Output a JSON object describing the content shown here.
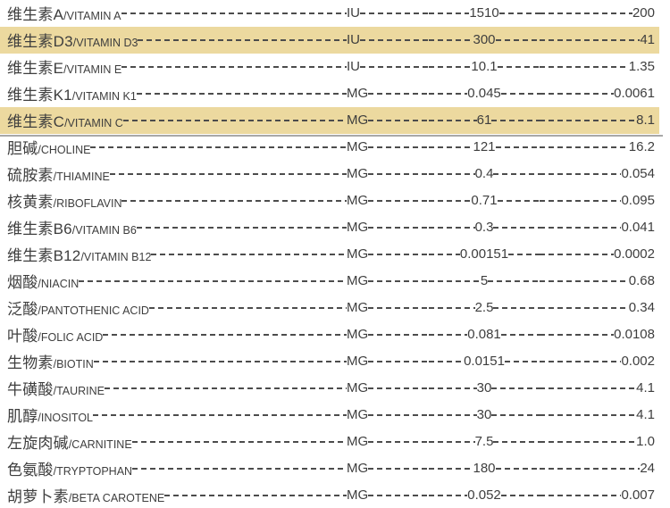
{
  "colors": {
    "highlight": "#ecd99f",
    "text": "#3e3e3e",
    "dash": "#4c4c4c",
    "divider": "#a8a8a8"
  },
  "table": {
    "rows": [
      {
        "cn": "维生素A",
        "en": "/VITAMIN A",
        "unit": "IU",
        "value1": "1510",
        "value2": "200",
        "highlight": false,
        "divider_below": false
      },
      {
        "cn": "维生素D3",
        "en": "/VITAMIN D3",
        "unit": "IU",
        "value1": "300",
        "value2": "41",
        "highlight": true,
        "divider_below": false
      },
      {
        "cn": "维生素E",
        "en": "/VITAMIN E",
        "unit": "IU",
        "value1": "10.1",
        "value2": "1.35",
        "highlight": false,
        "divider_below": false
      },
      {
        "cn": "维生素K1",
        "en": "/VITAMIN K1",
        "unit": "MG",
        "value1": "0.045",
        "value2": "0.0061",
        "highlight": false,
        "divider_below": false
      },
      {
        "cn": "维生素C",
        "en": "/VITAMIN C",
        "unit": "MG",
        "value1": "61",
        "value2": "8.1",
        "highlight": true,
        "divider_below": true
      },
      {
        "cn": "胆碱",
        "en": "/CHOLINE",
        "unit": "MG",
        "value1": "121",
        "value2": "16.2",
        "highlight": false,
        "divider_below": false
      },
      {
        "cn": "硫胺素",
        "en": "/THIAMINE",
        "unit": "MG",
        "value1": "0.4",
        "value2": "0.054",
        "highlight": false,
        "divider_below": false
      },
      {
        "cn": "核黄素",
        "en": "/RIBOFLAVIN",
        "unit": "MG",
        "value1": "0.71",
        "value2": "0.095",
        "highlight": false,
        "divider_below": false
      },
      {
        "cn": "维生素B6",
        "en": "/VITAMIN B6",
        "unit": "MG",
        "value1": "0.3",
        "value2": "0.041",
        "highlight": false,
        "divider_below": false
      },
      {
        "cn": "维生素B12",
        "en": "/VITAMIN B12",
        "unit": "MG",
        "value1": "0.00151",
        "value2": "0.0002",
        "highlight": false,
        "divider_below": false
      },
      {
        "cn": "烟酸",
        "en": "/NIACIN",
        "unit": "MG",
        "value1": "5",
        "value2": "0.68",
        "highlight": false,
        "divider_below": false
      },
      {
        "cn": "泛酸",
        "en": "/PANTOTHENIC ACID",
        "unit": "MG",
        "value1": "2.5",
        "value2": "0.34",
        "highlight": false,
        "divider_below": false
      },
      {
        "cn": "叶酸",
        "en": "/FOLIC ACID",
        "unit": "MG",
        "value1": "0.081",
        "value2": "0.0108",
        "highlight": false,
        "divider_below": false
      },
      {
        "cn": "生物素",
        "en": "/BIOTIN",
        "unit": "MG",
        "value1": "0.0151",
        "value2": "0.002",
        "highlight": false,
        "divider_below": false
      },
      {
        "cn": "牛磺酸",
        "en": "/TAURINE",
        "unit": "MG",
        "value1": "30",
        "value2": "4.1",
        "highlight": false,
        "divider_below": false
      },
      {
        "cn": "肌醇",
        "en": "/INOSITOL",
        "unit": "MG",
        "value1": "30",
        "value2": "4.1",
        "highlight": false,
        "divider_below": false
      },
      {
        "cn": "左旋肉碱",
        "en": "/CARNITINE",
        "unit": "MG",
        "value1": "7.5",
        "value2": "1.0",
        "highlight": false,
        "divider_below": false
      },
      {
        "cn": "色氨酸",
        "en": "/TRYPTOPHAN",
        "unit": "MG",
        "value1": "180",
        "value2": "24",
        "highlight": false,
        "divider_below": false
      },
      {
        "cn": "胡萝卜素",
        "en": "/BETA CAROTENE",
        "unit": "MG",
        "value1": "0.052",
        "value2": "0.007",
        "highlight": false,
        "divider_below": false
      }
    ]
  }
}
